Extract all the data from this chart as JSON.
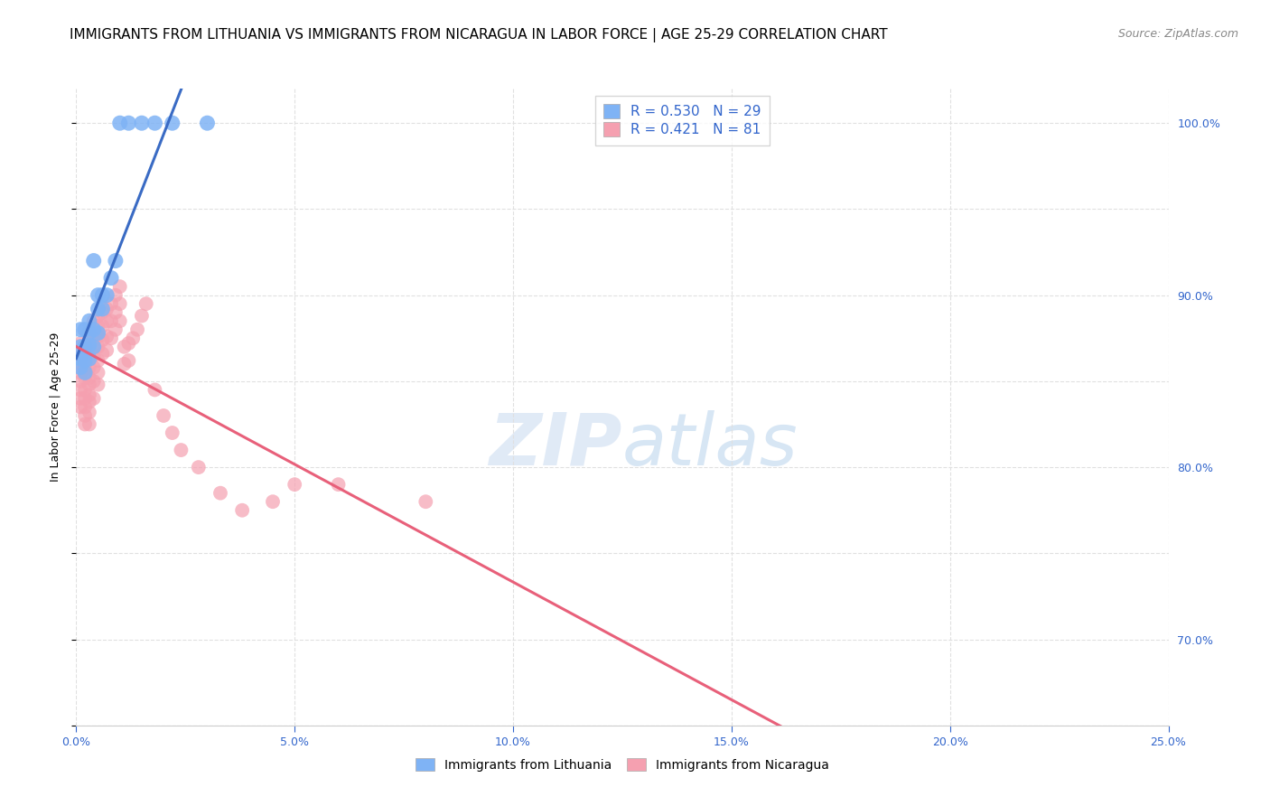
{
  "title": "IMMIGRANTS FROM LITHUANIA VS IMMIGRANTS FROM NICARAGUA IN LABOR FORCE | AGE 25-29 CORRELATION CHART",
  "source": "Source: ZipAtlas.com",
  "ylabel": "In Labor Force | Age 25-29",
  "xlim": [
    0.0,
    0.25
  ],
  "ylim": [
    0.65,
    1.02
  ],
  "xticks": [
    0.0,
    0.05,
    0.1,
    0.15,
    0.2,
    0.25
  ],
  "yticks": [
    0.7,
    0.8,
    0.9,
    1.0
  ],
  "xticklabels": [
    "0.0%",
    "5.0%",
    "10.0%",
    "15.0%",
    "20.0%",
    "25.0%"
  ],
  "yticklabels_right": [
    "70.0%",
    "80.0%",
    "90.0%",
    "100.0%"
  ],
  "R_lit": 0.53,
  "N_lit": 29,
  "R_nic": 0.421,
  "N_nic": 81,
  "color_lit": "#7fb3f5",
  "color_nic": "#f5a0b0",
  "line_color_lit": "#3a6bc4",
  "line_color_nic": "#e8607a",
  "legend_label_lit": "Immigrants from Lithuania",
  "legend_label_nic": "Immigrants from Nicaragua",
  "title_fontsize": 11,
  "source_fontsize": 9,
  "axis_tick_fontsize": 9,
  "ylabel_fontsize": 9,
  "legend_fontsize": 11,
  "lit_x": [
    0.001,
    0.001,
    0.001,
    0.001,
    0.002,
    0.002,
    0.002,
    0.002,
    0.003,
    0.003,
    0.003,
    0.003,
    0.004,
    0.004,
    0.004,
    0.005,
    0.005,
    0.005,
    0.006,
    0.006,
    0.007,
    0.008,
    0.009,
    0.01,
    0.012,
    0.015,
    0.018,
    0.022,
    0.03
  ],
  "lit_y": [
    0.87,
    0.88,
    0.858,
    0.863,
    0.855,
    0.862,
    0.87,
    0.88,
    0.863,
    0.871,
    0.878,
    0.885,
    0.87,
    0.88,
    0.92,
    0.878,
    0.892,
    0.9,
    0.892,
    0.9,
    0.9,
    0.91,
    0.92,
    1.0,
    1.0,
    1.0,
    1.0,
    1.0,
    1.0
  ],
  "nic_x": [
    0.001,
    0.001,
    0.001,
    0.001,
    0.001,
    0.001,
    0.001,
    0.001,
    0.001,
    0.002,
    0.002,
    0.002,
    0.002,
    0.002,
    0.002,
    0.002,
    0.002,
    0.002,
    0.002,
    0.003,
    0.003,
    0.003,
    0.003,
    0.003,
    0.003,
    0.003,
    0.003,
    0.003,
    0.003,
    0.003,
    0.004,
    0.004,
    0.004,
    0.004,
    0.004,
    0.004,
    0.004,
    0.004,
    0.005,
    0.005,
    0.005,
    0.005,
    0.005,
    0.005,
    0.005,
    0.006,
    0.006,
    0.006,
    0.006,
    0.007,
    0.007,
    0.007,
    0.007,
    0.008,
    0.008,
    0.008,
    0.009,
    0.009,
    0.009,
    0.01,
    0.01,
    0.01,
    0.011,
    0.011,
    0.012,
    0.012,
    0.013,
    0.014,
    0.015,
    0.016,
    0.018,
    0.02,
    0.022,
    0.024,
    0.028,
    0.033,
    0.038,
    0.045,
    0.05,
    0.06,
    0.08
  ],
  "nic_y": [
    0.86,
    0.865,
    0.868,
    0.872,
    0.855,
    0.85,
    0.845,
    0.84,
    0.835,
    0.87,
    0.865,
    0.86,
    0.858,
    0.852,
    0.845,
    0.84,
    0.835,
    0.83,
    0.825,
    0.878,
    0.875,
    0.87,
    0.865,
    0.858,
    0.852,
    0.848,
    0.842,
    0.838,
    0.832,
    0.825,
    0.885,
    0.88,
    0.875,
    0.87,
    0.865,
    0.858,
    0.85,
    0.84,
    0.888,
    0.882,
    0.876,
    0.87,
    0.862,
    0.855,
    0.848,
    0.89,
    0.882,
    0.874,
    0.866,
    0.892,
    0.885,
    0.876,
    0.868,
    0.895,
    0.885,
    0.875,
    0.9,
    0.89,
    0.88,
    0.905,
    0.895,
    0.885,
    0.87,
    0.86,
    0.872,
    0.862,
    0.875,
    0.88,
    0.888,
    0.895,
    0.845,
    0.83,
    0.82,
    0.81,
    0.8,
    0.785,
    0.775,
    0.78,
    0.79,
    0.79,
    0.78
  ],
  "watermark_zip": "ZIP",
  "watermark_atlas": "atlas",
  "background_color": "#ffffff",
  "grid_color": "#e0e0e0"
}
